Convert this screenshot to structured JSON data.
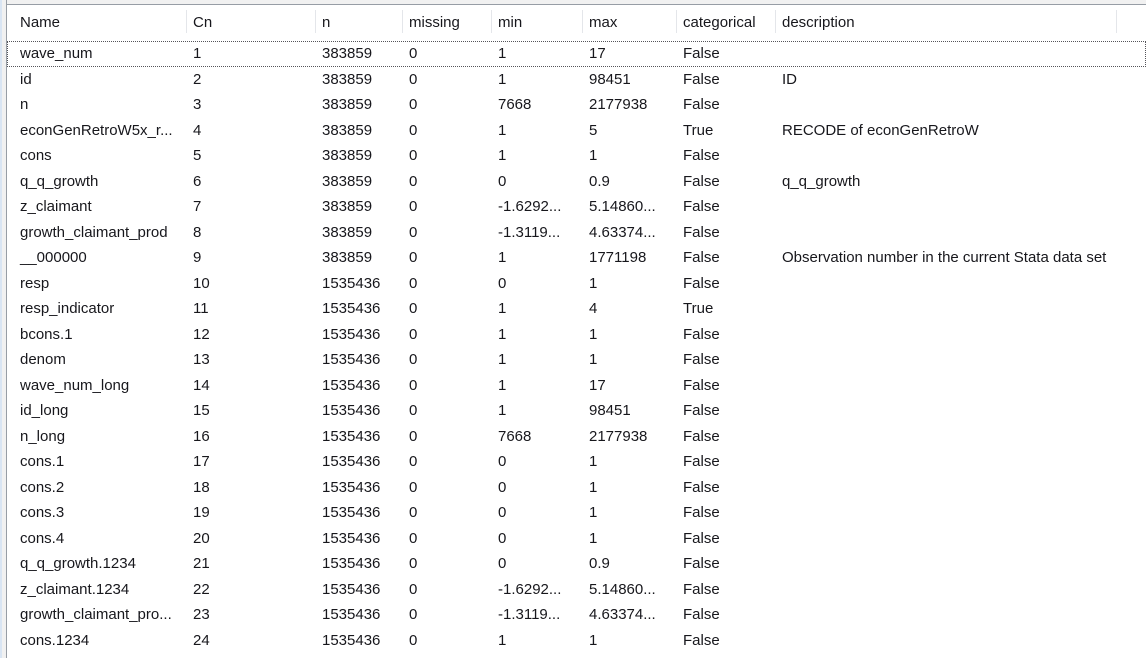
{
  "window_title": "variables-names-table",
  "header": {
    "columns": [
      "Name",
      "Cn",
      "n",
      "missing",
      "min",
      "max",
      "categorical",
      "description"
    ]
  },
  "focused_row_index": 0,
  "rows": [
    {
      "name": "wave_num",
      "cn": "1",
      "n": "383859",
      "missing": "0",
      "min": "1",
      "max": "17",
      "categorical": "False",
      "description": ""
    },
    {
      "name": "id",
      "cn": "2",
      "n": "383859",
      "missing": "0",
      "min": "1",
      "max": "98451",
      "categorical": "False",
      "description": "ID"
    },
    {
      "name": "n",
      "cn": "3",
      "n": "383859",
      "missing": "0",
      "min": "7668",
      "max": "2177938",
      "categorical": "False",
      "description": ""
    },
    {
      "name": "econGenRetroW5x_r...",
      "cn": "4",
      "n": "383859",
      "missing": "0",
      "min": "1",
      "max": "5",
      "categorical": "True",
      "description": "RECODE of econGenRetroW"
    },
    {
      "name": "cons",
      "cn": "5",
      "n": "383859",
      "missing": "0",
      "min": "1",
      "max": "1",
      "categorical": "False",
      "description": ""
    },
    {
      "name": "q_q_growth",
      "cn": "6",
      "n": "383859",
      "missing": "0",
      "min": "0",
      "max": "0.9",
      "categorical": "False",
      "description": "q_q_growth"
    },
    {
      "name": "z_claimant",
      "cn": "7",
      "n": "383859",
      "missing": "0",
      "min": "-1.6292...",
      "max": "5.14860...",
      "categorical": "False",
      "description": ""
    },
    {
      "name": "growth_claimant_prod",
      "cn": "8",
      "n": "383859",
      "missing": "0",
      "min": "-1.3119...",
      "max": "4.63374...",
      "categorical": "False",
      "description": ""
    },
    {
      "name": "__000000",
      "cn": "9",
      "n": "383859",
      "missing": "0",
      "min": "1",
      "max": "1771198",
      "categorical": "False",
      "description": "Observation number in the current Stata data set"
    },
    {
      "name": "resp",
      "cn": "10",
      "n": "1535436",
      "missing": "0",
      "min": "0",
      "max": "1",
      "categorical": "False",
      "description": ""
    },
    {
      "name": "resp_indicator",
      "cn": "11",
      "n": "1535436",
      "missing": "0",
      "min": "1",
      "max": "4",
      "categorical": "True",
      "description": ""
    },
    {
      "name": "bcons.1",
      "cn": "12",
      "n": "1535436",
      "missing": "0",
      "min": "1",
      "max": "1",
      "categorical": "False",
      "description": ""
    },
    {
      "name": "denom",
      "cn": "13",
      "n": "1535436",
      "missing": "0",
      "min": "1",
      "max": "1",
      "categorical": "False",
      "description": ""
    },
    {
      "name": "wave_num_long",
      "cn": "14",
      "n": "1535436",
      "missing": "0",
      "min": "1",
      "max": "17",
      "categorical": "False",
      "description": ""
    },
    {
      "name": "id_long",
      "cn": "15",
      "n": "1535436",
      "missing": "0",
      "min": "1",
      "max": "98451",
      "categorical": "False",
      "description": ""
    },
    {
      "name": "n_long",
      "cn": "16",
      "n": "1535436",
      "missing": "0",
      "min": "7668",
      "max": "2177938",
      "categorical": "False",
      "description": ""
    },
    {
      "name": "cons.1",
      "cn": "17",
      "n": "1535436",
      "missing": "0",
      "min": "0",
      "max": "1",
      "categorical": "False",
      "description": ""
    },
    {
      "name": "cons.2",
      "cn": "18",
      "n": "1535436",
      "missing": "0",
      "min": "0",
      "max": "1",
      "categorical": "False",
      "description": ""
    },
    {
      "name": "cons.3",
      "cn": "19",
      "n": "1535436",
      "missing": "0",
      "min": "0",
      "max": "1",
      "categorical": "False",
      "description": ""
    },
    {
      "name": "cons.4",
      "cn": "20",
      "n": "1535436",
      "missing": "0",
      "min": "0",
      "max": "1",
      "categorical": "False",
      "description": ""
    },
    {
      "name": "q_q_growth.1234",
      "cn": "21",
      "n": "1535436",
      "missing": "0",
      "min": "0",
      "max": "0.9",
      "categorical": "False",
      "description": ""
    },
    {
      "name": "z_claimant.1234",
      "cn": "22",
      "n": "1535436",
      "missing": "0",
      "min": "-1.6292...",
      "max": "5.14860...",
      "categorical": "False",
      "description": ""
    },
    {
      "name": "growth_claimant_pro...",
      "cn": "23",
      "n": "1535436",
      "missing": "0",
      "min": "-1.3119...",
      "max": "4.63374...",
      "categorical": "False",
      "description": ""
    },
    {
      "name": "cons.1234",
      "cn": "24",
      "n": "1535436",
      "missing": "0",
      "min": "1",
      "max": "1",
      "categorical": "False",
      "description": ""
    }
  ],
  "colors": {
    "window_bg": "#f1f1f1",
    "border": "#979da5",
    "accent_edge": "#d9e5f3",
    "text": "#17171c",
    "header_divider": "#e4e6ea",
    "focus_dots": "#55555a"
  }
}
